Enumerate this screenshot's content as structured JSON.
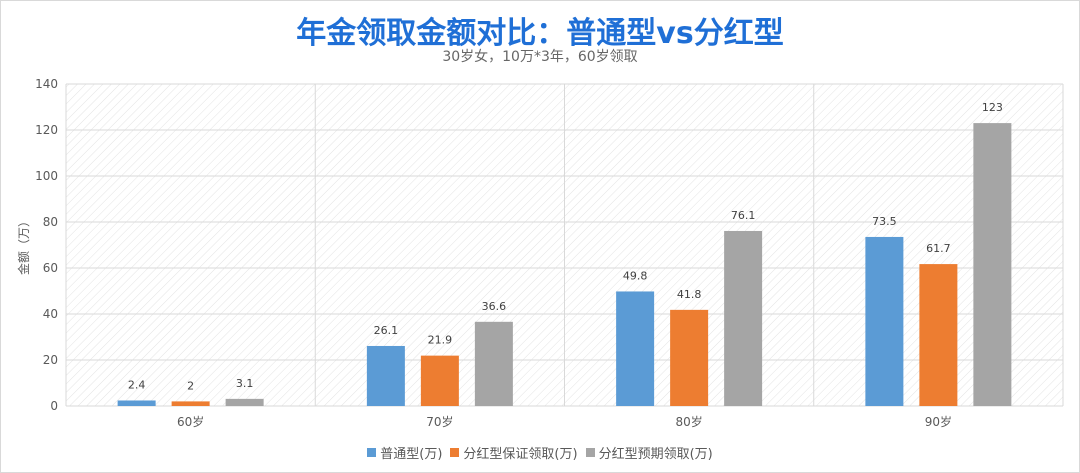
{
  "chart_data": {
    "type": "bar",
    "title": "年金领取金额对比：普通型vs分红型",
    "subtitle": "30岁女，10万*3年，60岁领取",
    "ylabel": "金额（万）",
    "xlabel": "",
    "ylim": [
      0,
      140
    ],
    "yticks": [
      0,
      20,
      40,
      60,
      80,
      100,
      120,
      140
    ],
    "grid": true,
    "legend_position": "bottom",
    "categories": [
      "60岁",
      "70岁",
      "80岁",
      "90岁"
    ],
    "series": [
      {
        "name": "普通型(万)",
        "color": "#5b9bd5",
        "values": [
          2.4,
          26.1,
          49.8,
          73.5
        ],
        "labels": [
          "2.4",
          "26.1",
          "49.8",
          "73.5"
        ]
      },
      {
        "name": "分红型保证领取(万)",
        "color": "#ed7d31",
        "values": [
          2,
          21.9,
          41.8,
          61.7
        ],
        "labels": [
          "2",
          "21.9",
          "41.8",
          "61.7"
        ]
      },
      {
        "name": "分红型预期领取(万)",
        "color": "#a5a5a5",
        "values": [
          3.1,
          36.6,
          76.1,
          123
        ],
        "labels": [
          "3.1",
          "36.6",
          "76.1",
          "123"
        ]
      }
    ]
  }
}
